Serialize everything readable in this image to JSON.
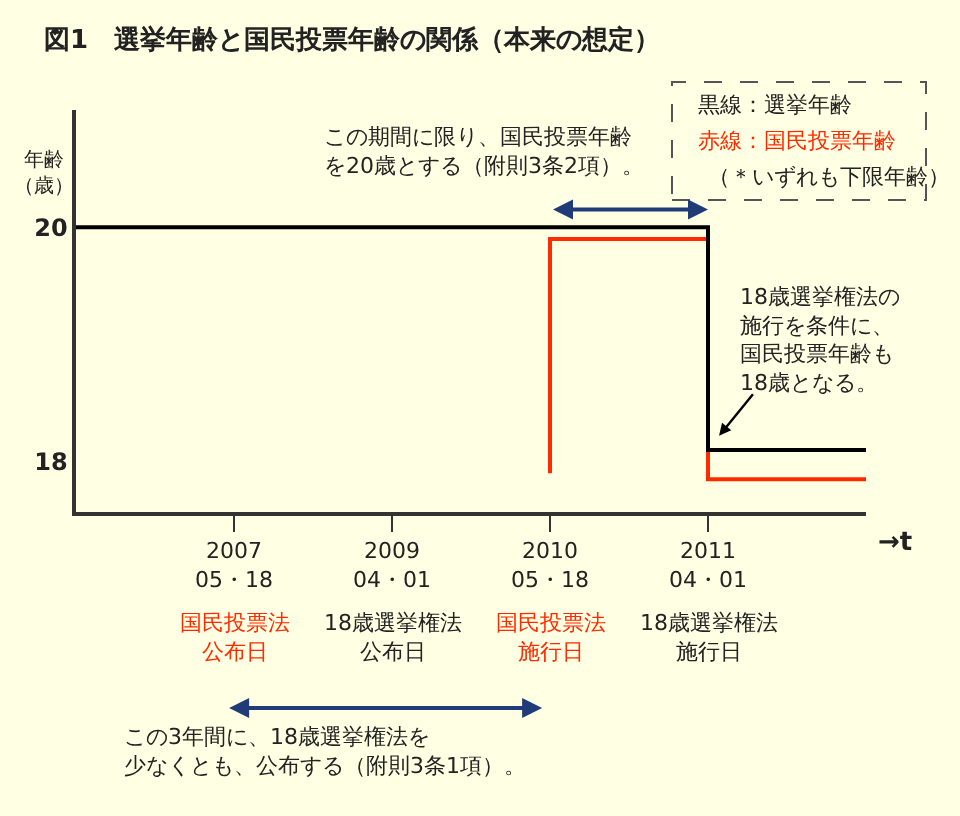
{
  "chart_data": {
    "type": "step",
    "title": "図1　選挙年齢と国民投票年齢の関係（本来の想定）",
    "ylabel": "年齢（歳）",
    "xlabel": "→t",
    "categories": [
      null,
      "2007\n05・18",
      "2009\n04・01",
      "2010\n05・18",
      "2011\n04・01",
      null
    ],
    "ylim": [
      17.57,
      21.0
    ],
    "yticks": [
      18,
      20
    ],
    "grid": false,
    "series": [
      {
        "color": "#ff2a00",
        "values": [
          null,
          null,
          null,
          17.9,
          19.9,
          17.85
        ]
      },
      {
        "color": "#000000",
        "values": [
          20,
          20,
          20,
          20,
          20,
          18.1
        ]
      }
    ],
    "annotations": [
      "この期間に限り、国民投票年齢を20歳とする（附則3条2項）。",
      "18歳選挙権法の施行を条件に、国民投票年齢も18歳となる。",
      "この3年間に、18歳選挙権法を少なくとも、公布する（附則3条1項）。",
      "黒線：選挙年齢",
      "赤線：国民投票年齢",
      "（＊いずれも下限年齢）",
      "国民投票法公布日",
      "18歳選挙権法公布日",
      "国民投票法施行日",
      "18歳選挙権法施行日"
    ]
  }
}
